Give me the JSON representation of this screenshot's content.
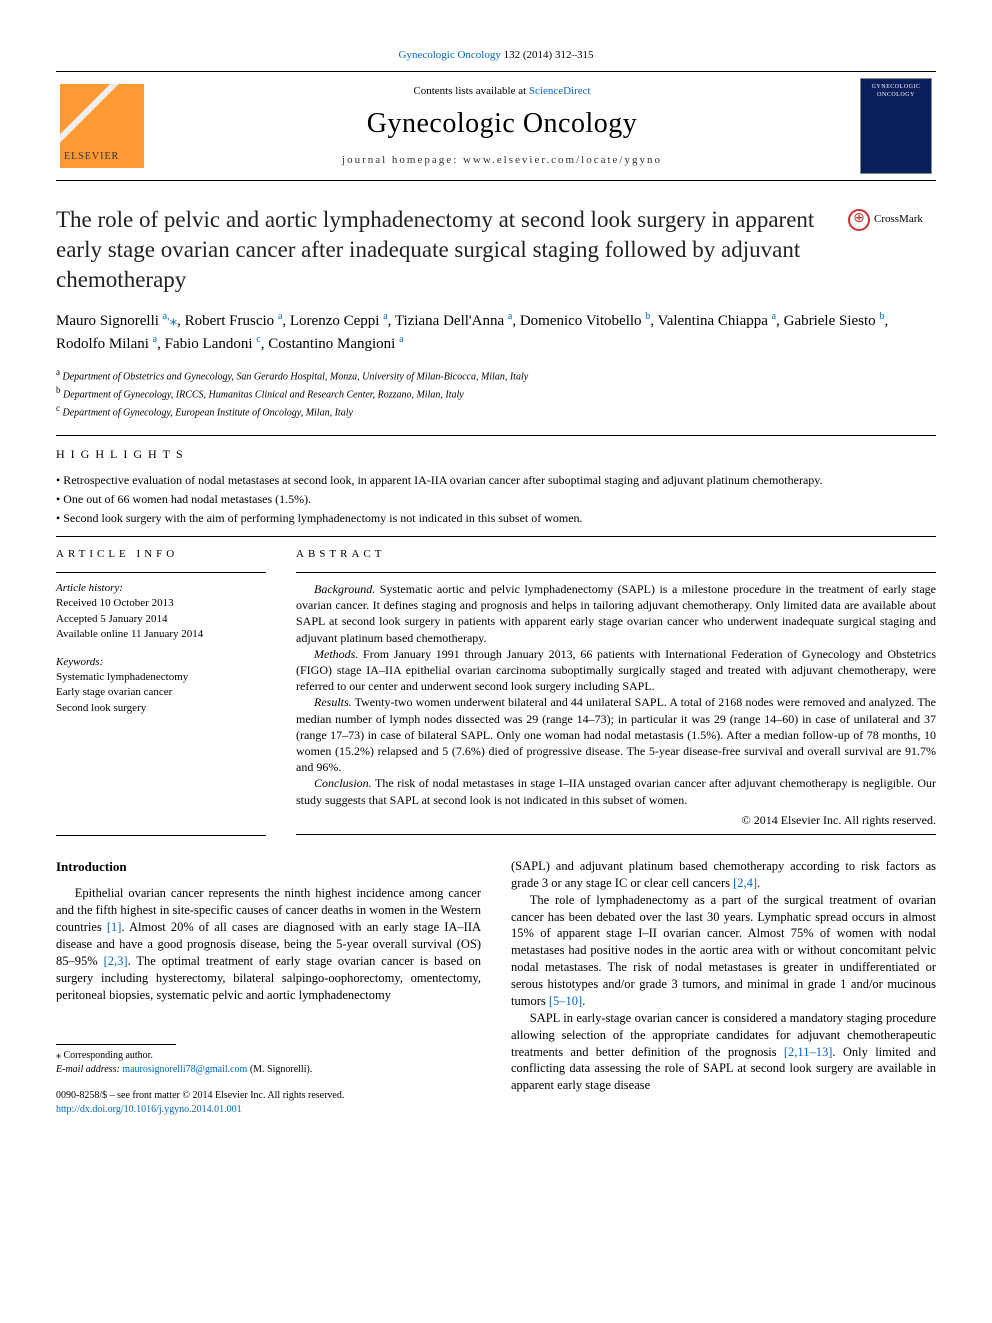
{
  "citation": {
    "journal_link": "Gynecologic Oncology",
    "volume_pages": " 132 (2014) 312–315"
  },
  "header": {
    "publisher_logo_text": "ELSEVIER",
    "contents_prefix": "Contents lists available at ",
    "contents_link": "ScienceDirect",
    "journal_name": "Gynecologic Oncology",
    "homepage_prefix": "journal homepage: ",
    "homepage_url": "www.elsevier.com/locate/ygyno",
    "cover_text": "GYNECOLOGIC ONCOLOGY"
  },
  "article": {
    "title": "The role of pelvic and aortic lymphadenectomy at second look surgery in apparent early stage ovarian cancer after inadequate surgical staging followed by adjuvant chemotherapy",
    "crossmark": "CrossMark"
  },
  "authors": {
    "list": "Mauro Signorelli <sup>a,</sup><span class='star'>⁎</span>, Robert Fruscio <sup>a</sup>, Lorenzo Ceppi <sup>a</sup>, Tiziana Dell'Anna <sup>a</sup>, Domenico Vitobello <sup>b</sup>, Valentina Chiappa <sup>a</sup>, Gabriele Siesto <sup>b</sup>, Rodolfo Milani <sup>a</sup>, Fabio Landoni <sup>c</sup>, Costantino Mangioni <sup>a</sup>"
  },
  "affiliations": {
    "a": "Department of Obstetrics and Gynecology, San Gerardo Hospital, Monza, University of Milan-Bicocca, Milan, Italy",
    "b": "Department of Gynecology, IRCCS, Humanitas Clinical and Research Center, Rozzano, Milan, Italy",
    "c": "Department of Gynecology, European Institute of Oncology, Milan, Italy"
  },
  "highlights": {
    "heading": "HIGHLIGHTS",
    "items": [
      "Retrospective evaluation of nodal metastases at second look, in apparent IA-IIA ovarian cancer after suboptimal staging and adjuvant platinum chemotherapy.",
      "One out of 66 women had nodal metastases (1.5%).",
      "Second look surgery with the aim of performing lymphadenectomy is not indicated in this subset of women."
    ]
  },
  "article_info": {
    "heading": "ARTICLE INFO",
    "history_label": "Article history:",
    "received": "Received 10 October 2013",
    "accepted": "Accepted 5 January 2014",
    "available": "Available online 11 January 2014",
    "keywords_label": "Keywords:",
    "keywords": [
      "Systematic lymphadenectomy",
      "Early stage ovarian cancer",
      "Second look surgery"
    ]
  },
  "abstract": {
    "heading": "ABSTRACT",
    "background_label": "Background.",
    "background": "Systematic aortic and pelvic lymphadenectomy (SAPL) is a milestone procedure in the treatment of early stage ovarian cancer. It defines staging and prognosis and helps in tailoring adjuvant chemotherapy. Only limited data are available about SAPL at second look surgery in patients with apparent early stage ovarian cancer who underwent inadequate surgical staging and adjuvant platinum based chemotherapy.",
    "methods_label": "Methods.",
    "methods": "From January 1991 through January 2013, 66 patients with International Federation of Gynecology and Obstetrics (FIGO) stage IA–IIA epithelial ovarian carcinoma suboptimally surgically staged and treated with adjuvant chemotherapy, were referred to our center and underwent second look surgery including SAPL.",
    "results_label": "Results.",
    "results": "Twenty-two women underwent bilateral and 44 unilateral SAPL. A total of 2168 nodes were removed and analyzed. The median number of lymph nodes dissected was 29 (range 14–73); in particular it was 29 (range 14–60) in case of unilateral and 37 (range 17–73) in case of bilateral SAPL. Only one woman had nodal metastasis (1.5%). After a median follow-up of 78 months, 10 women (15.2%) relapsed and 5 (7.6%) died of progressive disease. The 5-year disease-free survival and overall survival are 91.7% and 96%.",
    "conclusion_label": "Conclusion.",
    "conclusion": "The risk of nodal metastases in stage I–IIA unstaged ovarian cancer after adjuvant chemotherapy is negligible. Our study suggests that SAPL at second look is not indicated in this subset of women.",
    "copyright": "© 2014 Elsevier Inc. All rights reserved."
  },
  "body": {
    "intro_heading": "Introduction",
    "col1_p1_pre": "Epithelial ovarian cancer represents the ninth highest incidence among cancer and the fifth highest in site-specific causes of cancer deaths in women in the Western countries ",
    "ref1": "[1]",
    "col1_p1_mid": ". Almost 20% of all cases are diagnosed with an early stage IA–IIA disease and have a good prognosis disease, being the 5-year overall survival (OS) 85–95% ",
    "ref23": "[2,3]",
    "col1_p1_post": ". The optimal treatment of early stage ovarian cancer is based on surgery including hysterectomy, bilateral salpingo-oophorectomy, omentectomy, peritoneal biopsies, systematic pelvic and aortic lymphadenectomy",
    "col2_p1_pre": "(SAPL) and adjuvant platinum based chemotherapy according to risk factors as grade 3 or any stage IC or clear cell cancers ",
    "ref24": "[2,4]",
    "col2_p1_post": ".",
    "col2_p2_pre": "The role of lymphadenectomy as a part of the surgical treatment of ovarian cancer has been debated over the last 30 years. Lymphatic spread occurs in almost 15% of apparent stage I–II ovarian cancer. Almost 75% of women with nodal metastases had positive nodes in the aortic area with or without concomitant pelvic nodal metastases. The risk of nodal metastases is greater in undifferentiated or serous histotypes and/or grade 3 tumors, and minimal in grade 1 and/or mucinous tumors ",
    "ref510": "[5–10]",
    "col2_p2_post": ".",
    "col2_p3_pre": "SAPL in early-stage ovarian cancer is considered a mandatory staging procedure allowing selection of the appropriate candidates for adjuvant chemotherapeutic treatments and better definition of the prognosis ",
    "ref21113": "[2,11–13]",
    "col2_p3_post": ". Only limited and conflicting data assessing the role of SAPL at second look surgery are available in apparent early stage disease"
  },
  "footnote": {
    "corr": "⁎ Corresponding author.",
    "email_label": "E-mail address: ",
    "email": "maurosignorelli78@gmail.com",
    "email_name": " (M. Signorelli)."
  },
  "footer": {
    "issn": "0090-8258/$ – see front matter © 2014 Elsevier Inc. All rights reserved.",
    "doi": "http://dx.doi.org/10.1016/j.ygyno.2014.01.001"
  }
}
